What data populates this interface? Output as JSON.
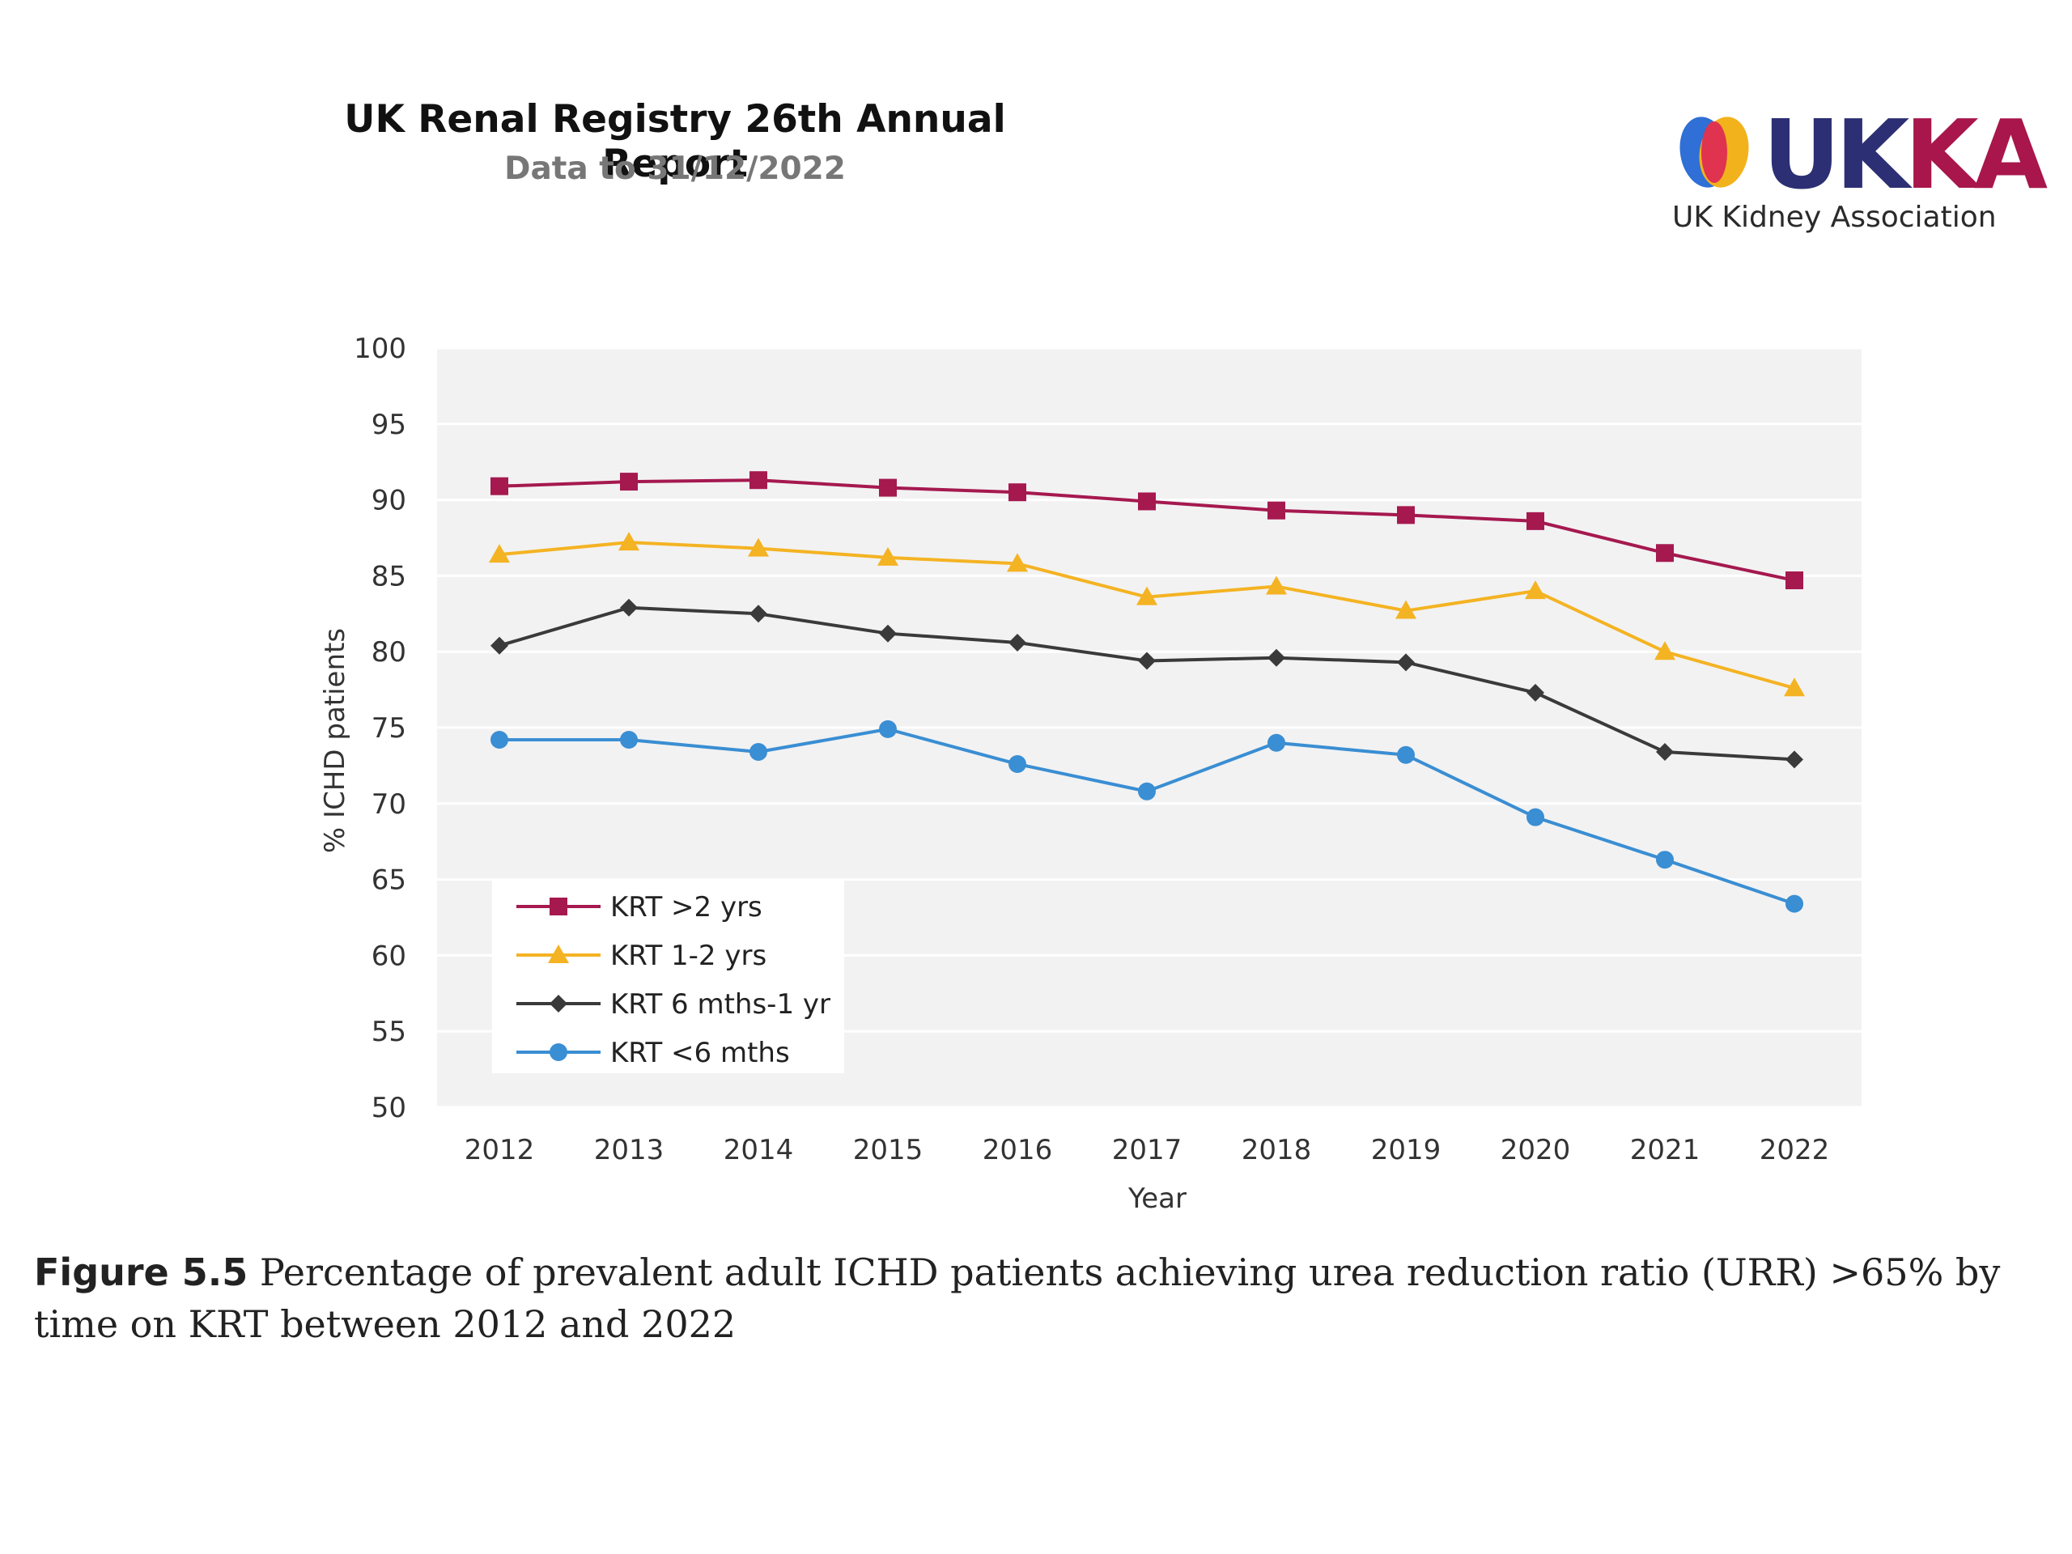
{
  "header": {
    "title": "UK Renal Registry 26th Annual Report",
    "subtitle": "Data to 31/12/2022"
  },
  "logo": {
    "word_part1": "UK",
    "word_part2": "KA",
    "tagline": "UK Kidney Association",
    "colors": {
      "navy": "#2c2f73",
      "red": "#a8164b",
      "yellow": "#f2b21c",
      "blue": "#2f6fd6"
    }
  },
  "chart_data": {
    "type": "line",
    "title": "",
    "xlabel": "Year",
    "ylabel": "% ICHD patients",
    "ylim": [
      50,
      100
    ],
    "yticks": [
      50,
      55,
      60,
      65,
      70,
      75,
      80,
      85,
      90,
      95,
      100
    ],
    "categories": [
      "2012",
      "2013",
      "2014",
      "2015",
      "2016",
      "2017",
      "2018",
      "2019",
      "2020",
      "2021",
      "2022"
    ],
    "grid": true,
    "legend_position": "bottom-left",
    "series": [
      {
        "name": "KRT >2 yrs",
        "color": "#a5194f",
        "marker": "square",
        "values": [
          90.9,
          91.2,
          91.3,
          90.8,
          90.5,
          89.9,
          89.3,
          89.0,
          88.6,
          86.5,
          84.7
        ]
      },
      {
        "name": "KRT 1-2 yrs",
        "color": "#f4b323",
        "marker": "triangle",
        "values": [
          86.4,
          87.2,
          86.8,
          86.2,
          85.8,
          83.6,
          84.3,
          82.7,
          84.0,
          80.0,
          77.6
        ]
      },
      {
        "name": "KRT 6 mths-1 yr",
        "color": "#3a3a3a",
        "marker": "diamond",
        "values": [
          80.4,
          82.9,
          82.5,
          81.2,
          80.6,
          79.4,
          79.6,
          79.3,
          77.3,
          73.4,
          72.9
        ]
      },
      {
        "name": "KRT <6 mths",
        "color": "#3a8ed3",
        "marker": "circle",
        "values": [
          74.2,
          74.2,
          73.4,
          74.9,
          72.6,
          70.8,
          74.0,
          73.2,
          69.1,
          66.3,
          63.4
        ]
      }
    ]
  },
  "caption": {
    "label": "Figure 5.5",
    "text": " Percentage of prevalent adult ICHD patients achieving urea reduction ratio (URR) >65% by time on KRT between 2012 and 2022"
  }
}
